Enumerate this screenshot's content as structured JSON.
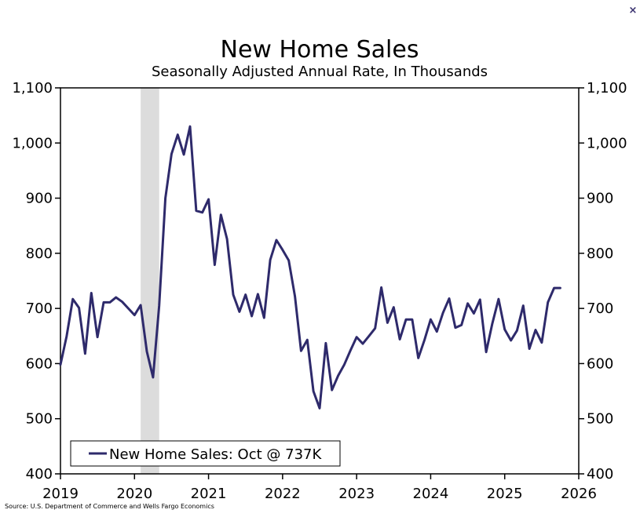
{
  "chart_data": {
    "type": "line",
    "title": "New Home Sales",
    "subtitle": "Seasonally Adjusted Annual Rate, In Thousands",
    "xlabel": "",
    "ylabel": "",
    "ylim": [
      400,
      1100
    ],
    "xlim": [
      "2019-01",
      "2026-01"
    ],
    "yticks": [
      "400",
      "500",
      "600",
      "700",
      "800",
      "900",
      "1,000",
      "1,100"
    ],
    "xticks": [
      "2019",
      "2020",
      "2021",
      "2022",
      "2023",
      "2024",
      "2025",
      "2026"
    ],
    "grid": false,
    "legend_position": "bottom-left",
    "shaded_periods": [
      {
        "start": "2020-02",
        "end": "2020-04"
      }
    ],
    "series": [
      {
        "name": "New Home Sales: Oct @ 737K",
        "color": "#2e2a6b",
        "x": [
          "2019-01",
          "2019-02",
          "2019-03",
          "2019-04",
          "2019-05",
          "2019-06",
          "2019-07",
          "2019-08",
          "2019-09",
          "2019-10",
          "2019-11",
          "2019-12",
          "2020-01",
          "2020-02",
          "2020-03",
          "2020-04",
          "2020-05",
          "2020-06",
          "2020-07",
          "2020-08",
          "2020-09",
          "2020-10",
          "2020-11",
          "2020-12",
          "2021-01",
          "2021-02",
          "2021-03",
          "2021-04",
          "2021-05",
          "2021-06",
          "2021-07",
          "2021-08",
          "2021-09",
          "2021-10",
          "2021-11",
          "2021-12",
          "2022-01",
          "2022-02",
          "2022-03",
          "2022-04",
          "2022-05",
          "2022-06",
          "2022-07",
          "2022-08",
          "2022-09",
          "2022-10",
          "2022-11",
          "2022-12",
          "2023-01",
          "2023-02",
          "2023-03",
          "2023-04",
          "2023-05",
          "2023-06",
          "2023-07",
          "2023-08",
          "2023-09",
          "2023-10",
          "2023-11",
          "2023-12",
          "2024-01",
          "2024-02",
          "2024-03",
          "2024-04",
          "2024-05",
          "2024-06",
          "2024-07",
          "2024-08",
          "2024-09",
          "2024-10",
          "2024-11",
          "2024-12",
          "2025-01",
          "2025-02",
          "2025-03",
          "2025-04",
          "2025-05",
          "2025-06",
          "2025-07",
          "2025-08",
          "2025-09",
          "2025-10"
        ],
        "values": [
          598,
          650,
          717,
          701,
          618,
          728,
          648,
          711,
          711,
          720,
          712,
          700,
          688,
          706,
          622,
          575,
          705,
          900,
          980,
          1015,
          979,
          1030,
          877,
          874,
          898,
          779,
          870,
          826,
          725,
          694,
          725,
          686,
          726,
          683,
          788,
          824,
          806,
          787,
          722,
          623,
          643,
          550,
          519,
          637,
          552,
          578,
          598,
          624,
          648,
          636,
          650,
          664,
          738,
          674,
          702,
          644,
          680,
          680,
          610,
          643,
          680,
          658,
          692,
          718,
          665,
          670,
          709,
          691,
          716,
          621,
          673,
          717,
          662,
          642,
          660,
          705,
          627,
          661,
          638,
          711,
          737,
          737
        ]
      }
    ]
  },
  "source": "Source: U.S. Department of Commerce and Wells Fargo Economics",
  "close_label": "×"
}
